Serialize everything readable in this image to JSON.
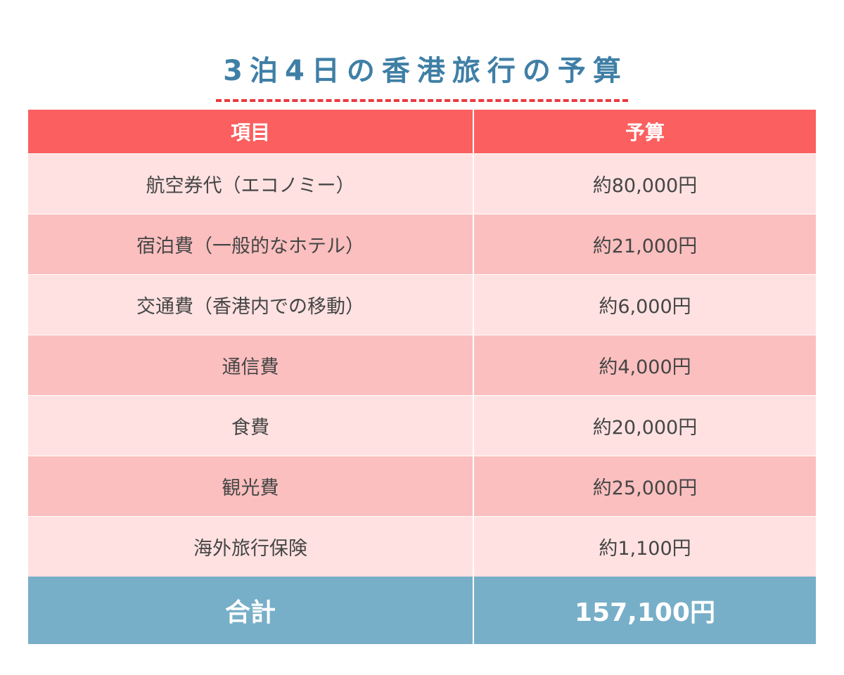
{
  "title": "3泊4日の香港旅行の予算",
  "table": {
    "headers": [
      "項目",
      "予算"
    ],
    "rows": [
      {
        "item": "航空券代（エコノミー）",
        "budget": "約80,000円"
      },
      {
        "item": "宿泊費（一般的なホテル）",
        "budget": "約21,000円"
      },
      {
        "item": "交通費（香港内での移動）",
        "budget": "約6,000円"
      },
      {
        "item": "通信費",
        "budget": "約4,000円"
      },
      {
        "item": "食費",
        "budget": "約20,000円"
      },
      {
        "item": "観光費",
        "budget": "約25,000円"
      },
      {
        "item": "海外旅行保険",
        "budget": "約1,100円"
      }
    ],
    "total": {
      "label": "合計",
      "value": "157,100円"
    }
  },
  "colors": {
    "title": "#3f7fa6",
    "title_underline": "#e83a3f",
    "header_bg": "#fb5f5f",
    "row_light": "#ffe1e1",
    "row_dark": "#fbbfbf",
    "total_bg": "#78afc8"
  }
}
